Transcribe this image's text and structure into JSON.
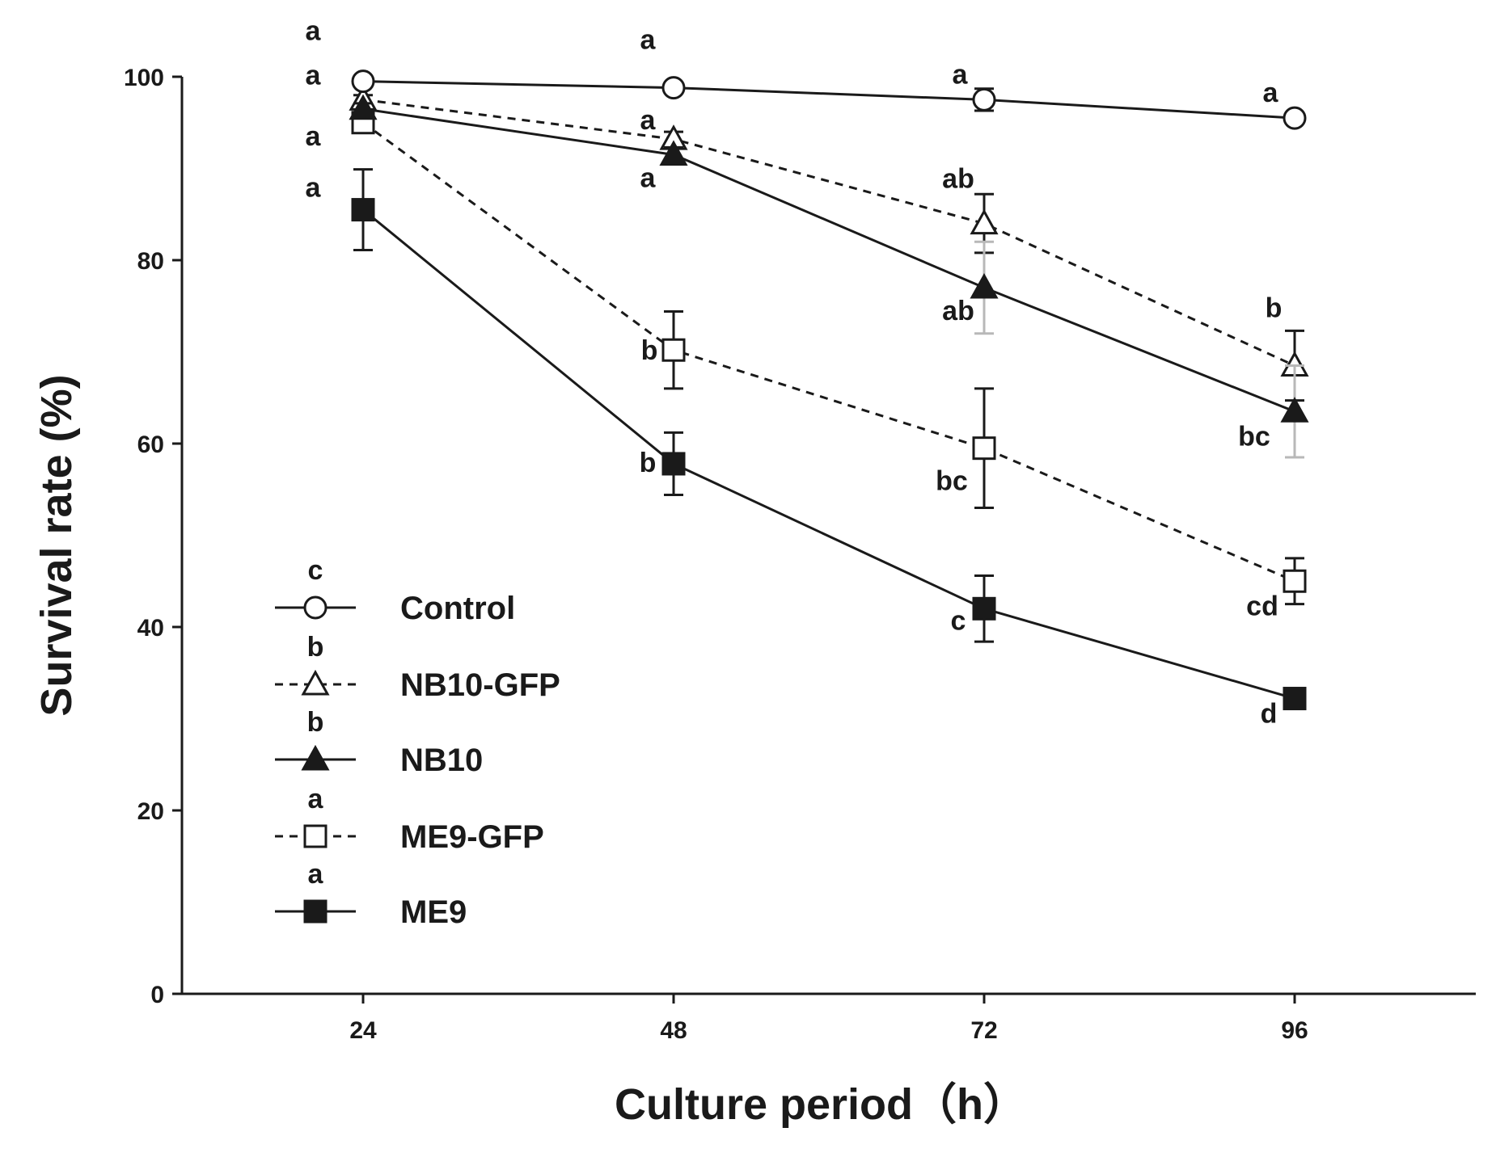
{
  "chart_data": {
    "type": "line",
    "title": "",
    "xlabel": "Culture period（h）",
    "ylabel": "Survival rate (%)",
    "x": [
      24,
      48,
      72,
      96
    ],
    "xlim": [
      10,
      110
    ],
    "ylim": [
      0,
      100
    ],
    "yticks": [
      0,
      20,
      40,
      60,
      80,
      100
    ],
    "grid": false,
    "legend_position": "bottom-left",
    "series": [
      {
        "name": "Control",
        "color": "#1a1a1a",
        "line": "solid",
        "marker": "circle-open",
        "values": [
          99.5,
          98.8,
          97.5,
          95.5
        ],
        "errors": [
          0.3,
          0.4,
          1.2,
          0.4
        ],
        "labels": [
          "a",
          "a",
          "a",
          "a"
        ],
        "legend_letter": "c"
      },
      {
        "name": "NB10-GFP",
        "color": "#1a1a1a",
        "line": "dashed",
        "marker": "triangle-open",
        "values": [
          97.5,
          93.2,
          84.0,
          68.5
        ],
        "errors": [
          0.5,
          0.8,
          3.2,
          3.8
        ],
        "labels": [
          "a",
          "a",
          "ab",
          "b"
        ],
        "legend_letter": "b"
      },
      {
        "name": "NB10",
        "color": "#1a1a1a",
        "line": "solid",
        "marker": "triangle-filled",
        "values": [
          96.5,
          91.5,
          77.0,
          63.5
        ],
        "errors": [
          0.6,
          0.8,
          5.0,
          5.0
        ],
        "labels": [
          "a",
          "a",
          "ab",
          "bc"
        ],
        "legend_letter": "b"
      },
      {
        "name": "ME9-GFP",
        "color": "#1a1a1a",
        "line": "dashed",
        "marker": "square-open",
        "values": [
          95.0,
          70.2,
          59.5,
          45.0
        ],
        "errors": [
          0.8,
          4.2,
          6.5,
          2.5
        ],
        "labels": [
          "a",
          "b",
          "bc",
          "cd"
        ],
        "legend_letter": "a"
      },
      {
        "name": "ME9",
        "color": "#1a1a1a",
        "line": "solid",
        "marker": "square-filled",
        "values": [
          85.5,
          57.8,
          42.0,
          32.2
        ],
        "errors": [
          4.4,
          3.4,
          3.6,
          0.5
        ],
        "labels": [
          "a",
          "b",
          "c",
          "d"
        ],
        "legend_letter": "a"
      }
    ]
  }
}
